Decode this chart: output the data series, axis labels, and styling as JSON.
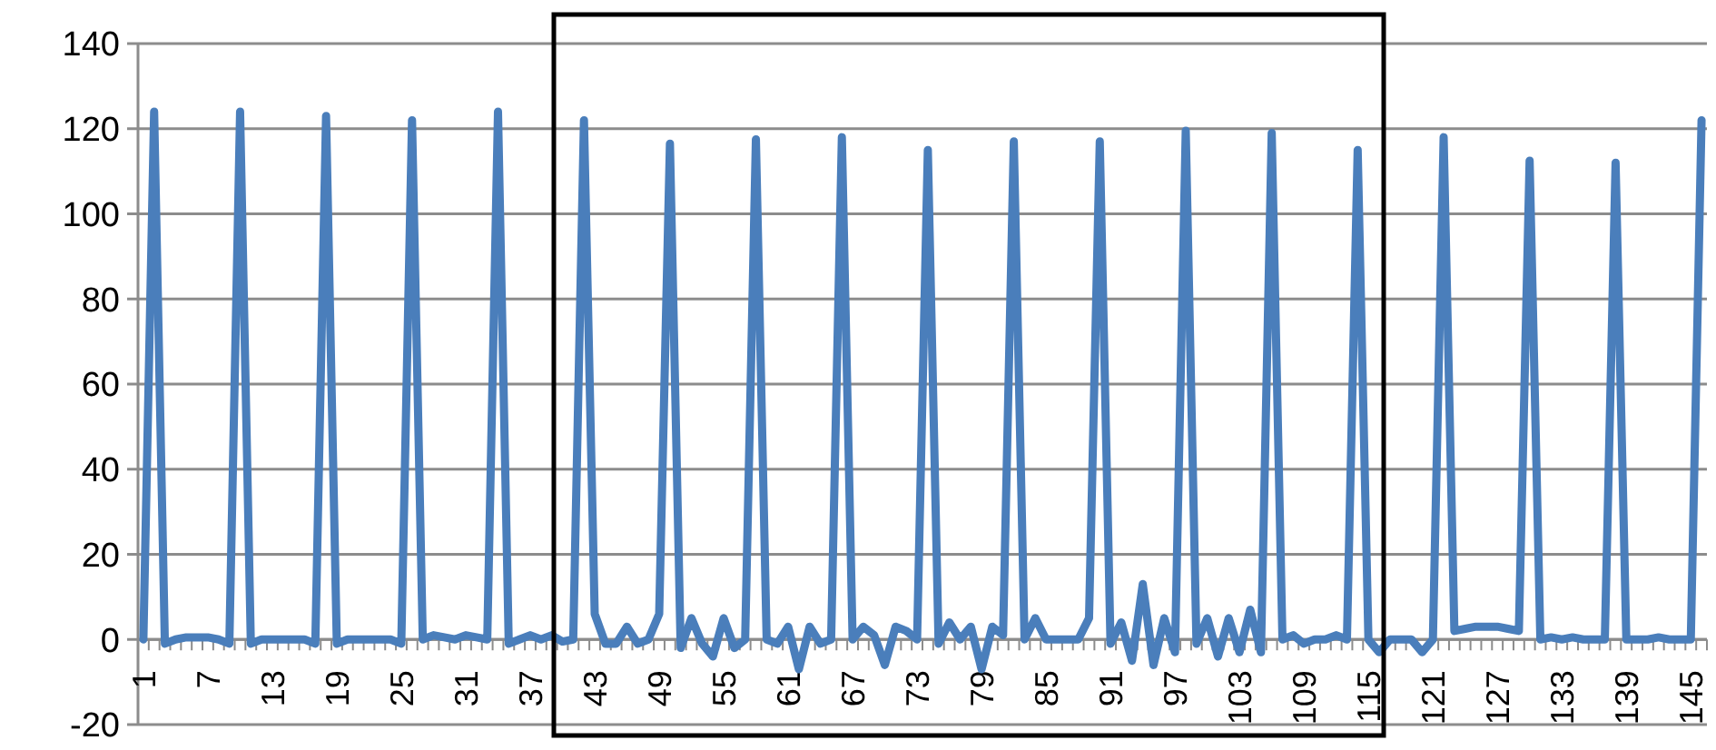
{
  "chart_data": {
    "type": "line",
    "categories": [
      "1",
      null,
      null,
      null,
      null,
      null,
      "7",
      null,
      null,
      null,
      null,
      null,
      "13",
      null,
      null,
      null,
      null,
      null,
      "19",
      null,
      null,
      null,
      null,
      null,
      "25",
      null,
      null,
      null,
      null,
      null,
      "31",
      null,
      null,
      null,
      null,
      null,
      "37",
      null,
      null,
      null,
      null,
      null,
      "43",
      null,
      null,
      null,
      null,
      null,
      "49",
      null,
      null,
      null,
      null,
      null,
      "55",
      null,
      null,
      null,
      null,
      null,
      "61",
      null,
      null,
      null,
      null,
      null,
      "67",
      null,
      null,
      null,
      null,
      null,
      "73",
      null,
      null,
      null,
      null,
      null,
      "79",
      null,
      null,
      null,
      null,
      null,
      "85",
      null,
      null,
      null,
      null,
      null,
      "91",
      null,
      null,
      null,
      null,
      null,
      "97",
      null,
      null,
      null,
      null,
      null,
      "103",
      null,
      null,
      null,
      null,
      null,
      "109",
      null,
      null,
      null,
      null,
      null,
      "115",
      null,
      null,
      null,
      null,
      null,
      "121",
      null,
      null,
      null,
      null,
      null,
      "127",
      null,
      null,
      null,
      null,
      null,
      "133",
      null,
      null,
      null,
      null,
      null,
      "139",
      null,
      null,
      null,
      null,
      null,
      "145",
      null
    ],
    "series": [
      {
        "color": "#4a7ebb",
        "values": [
          0,
          124,
          -1,
          0,
          0.5,
          0.5,
          0.5,
          0,
          -1,
          124,
          -1,
          0,
          0,
          0,
          0,
          0,
          -1,
          123,
          -1,
          0,
          0,
          0,
          0,
          0,
          -1,
          122,
          0,
          1,
          0.5,
          0,
          1,
          0.5,
          0,
          124,
          -1,
          0,
          1,
          0,
          1,
          -0.5,
          0,
          122,
          6,
          -1,
          -1,
          3,
          -1,
          0,
          6,
          116.5,
          -2,
          5,
          -1,
          -4,
          5,
          -2,
          0,
          117.5,
          0,
          -1,
          3,
          -7,
          3,
          -1,
          0,
          118,
          0,
          3,
          1,
          -6,
          3,
          2,
          0,
          115,
          -1,
          4,
          0,
          3,
          -7,
          3,
          1,
          117,
          0,
          5,
          0,
          0,
          0,
          0,
          5,
          117,
          -1,
          4,
          -5,
          13,
          -6,
          5,
          -3,
          119.5,
          -1,
          5,
          -4,
          5,
          -3,
          7,
          -3,
          119,
          0,
          1,
          -1,
          0,
          0,
          1,
          0,
          115,
          0,
          -3,
          0,
          0,
          0,
          -3,
          0,
          118,
          2,
          2.5,
          3,
          3,
          3,
          2.5,
          2,
          112.5,
          0,
          0.5,
          0,
          0.5,
          0,
          0,
          0,
          112,
          0,
          0,
          0,
          0.5,
          0,
          0,
          0,
          122
        ]
      }
    ],
    "ylim": [
      -20,
      140
    ],
    "yticks": [
      -20,
      0,
      20,
      40,
      60,
      80,
      100,
      120,
      140
    ],
    "grid": "y",
    "marker": "none",
    "line_style": "solid"
  }
}
